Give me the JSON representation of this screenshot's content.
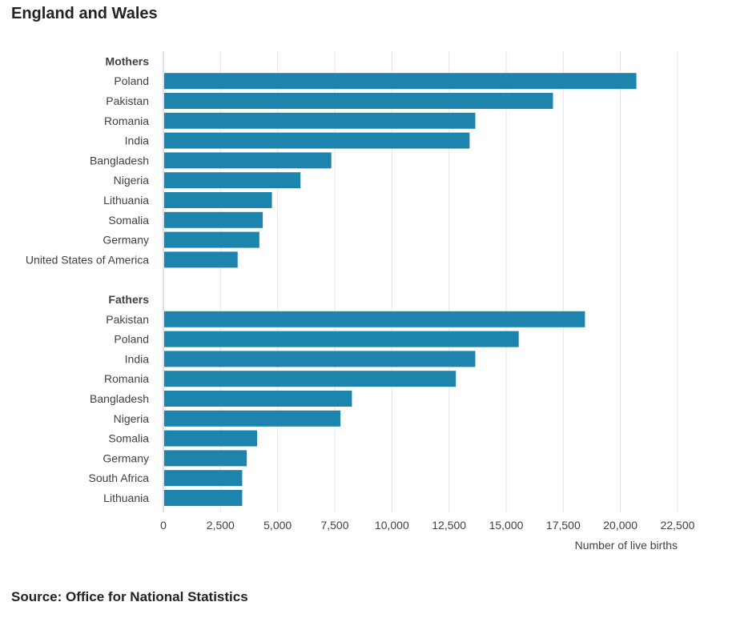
{
  "title": "England and Wales",
  "source": "Source: Office for National Statistics",
  "chart_data": {
    "type": "bar",
    "orientation": "horizontal",
    "color": "#1d84ad",
    "xlabel": "Number of live births",
    "ylabel": "",
    "xlim": [
      0,
      22500
    ],
    "xticks": [
      0,
      2500,
      5000,
      7500,
      10000,
      12500,
      15000,
      17500,
      20000,
      22500
    ],
    "xtick_labels": [
      "0",
      "2,500",
      "5,000",
      "7,500",
      "10,000",
      "12,500",
      "15,000",
      "17,500",
      "20,000",
      "22,500"
    ],
    "grid": "vertical",
    "groups": [
      {
        "name": "Mothers",
        "categories": [
          "Poland",
          "Pakistan",
          "Romania",
          "India",
          "Bangladesh",
          "Nigeria",
          "Lithuania",
          "Somalia",
          "Germany",
          "United States of America"
        ],
        "values": [
          20700,
          17050,
          13650,
          13400,
          7350,
          6000,
          4750,
          4350,
          4200,
          3250
        ]
      },
      {
        "name": "Fathers",
        "categories": [
          "Pakistan",
          "Poland",
          "India",
          "Romania",
          "Bangladesh",
          "Nigeria",
          "Somalia",
          "Germany",
          "South Africa",
          "Lithuania"
        ],
        "values": [
          18450,
          15550,
          13650,
          12800,
          8250,
          7750,
          4100,
          3650,
          3450,
          3450
        ]
      }
    ]
  }
}
